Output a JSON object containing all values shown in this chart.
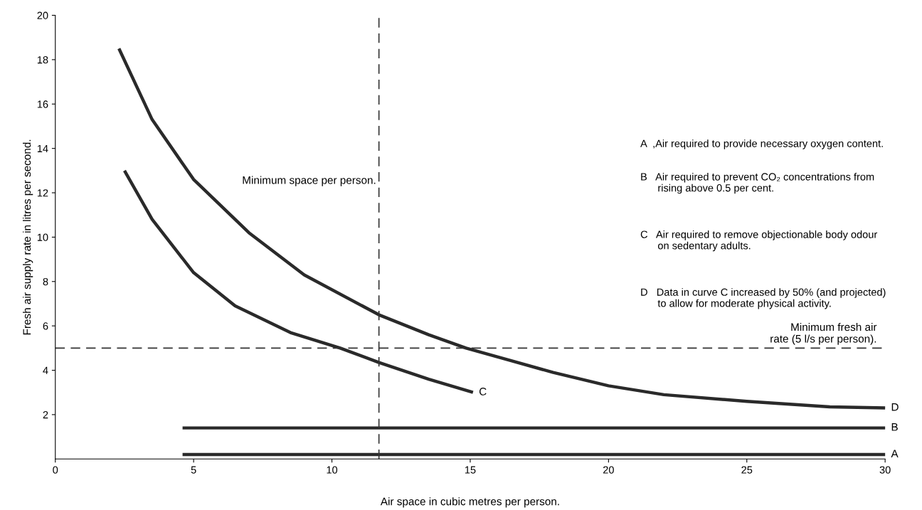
{
  "chart_data": {
    "type": "line",
    "xlabel": "Air space in cubic metres per person.",
    "ylabel": "Fresh air supply rate in litres per second.",
    "xlim": [
      0,
      30
    ],
    "ylim": [
      0,
      20
    ],
    "xticks": [
      0,
      5,
      10,
      15,
      20,
      25,
      30
    ],
    "yticks": [
      2,
      4,
      6,
      8,
      10,
      12,
      14,
      16,
      18,
      20
    ],
    "grid": false,
    "legend": false,
    "marker": "none",
    "line_style": "solid",
    "series": [
      {
        "name": "A",
        "color": "#2a2a2a",
        "x": [
          4.6,
          30
        ],
        "values": [
          0.2,
          0.2
        ]
      },
      {
        "name": "B",
        "color": "#2a2a2a",
        "x": [
          4.6,
          30
        ],
        "values": [
          1.4,
          1.4
        ]
      },
      {
        "name": "C",
        "color": "#2a2a2a",
        "x": [
          2.5,
          3.5,
          5.0,
          6.5,
          8.5,
          10.3,
          11.7,
          13.5,
          15.1
        ],
        "values": [
          13,
          10.8,
          8.4,
          6.9,
          5.7,
          5.0,
          4.35,
          3.6,
          3.0
        ]
      },
      {
        "name": "D",
        "color": "#2a2a2a",
        "x": [
          2.3,
          3.5,
          5,
          7,
          9,
          11.7,
          13.5,
          14.85,
          16,
          18,
          20,
          22,
          25,
          28,
          30
        ],
        "values": [
          18.5,
          15.3,
          12.6,
          10.2,
          8.3,
          6.5,
          5.6,
          5,
          4.6,
          3.9,
          3.3,
          2.9,
          2.6,
          2.35,
          2.3
        ]
      }
    ],
    "ref_lines": [
      {
        "axis": "x",
        "value": 11.7,
        "label": "Minimum space per person.",
        "color": "#333333",
        "line_style": "dashed"
      },
      {
        "axis": "y",
        "value": 5,
        "label": "Minimum fresh air\nrate (5 l/s per person).",
        "color": "#333333",
        "line_style": "dashed"
      }
    ],
    "annotations": [
      "A  ,Air required to provide necessary oxygen content.",
      "B   Air required to prevent CO₂ concentrations from\n      rising above 0.5 per cent.",
      "C   Air required to remove objectionable body odour\n      on sedentary adults.",
      "D   Data in curve C increased by 50% (and projected)\n      to allow for moderate physical activity."
    ]
  }
}
